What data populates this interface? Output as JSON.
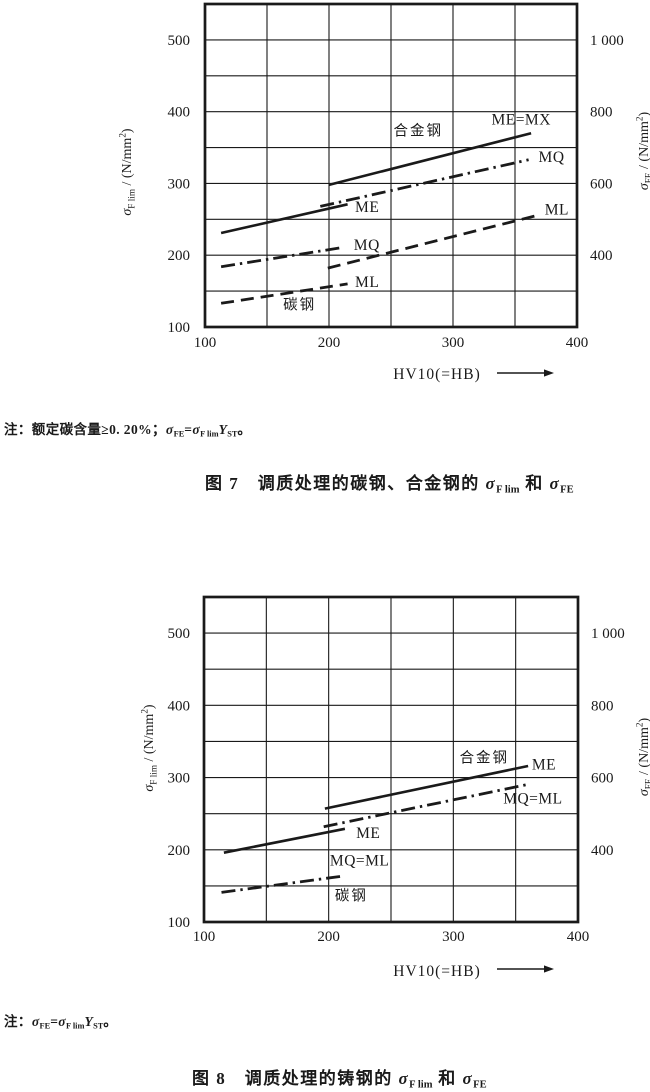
{
  "page": {
    "background": "#ffffff",
    "ink": "#1a1a1a"
  },
  "chart_data": [
    {
      "id": "figure-7",
      "type": "line",
      "caption": "图 7 调质处理的碳钢、合金钢的 σF lim 和 σFE",
      "note": "注：额定碳含量≥0. 20%；σFE=σF limYST。",
      "xlabel": "HV10(=HB)",
      "ylabel_left": "σF lim / (N/mm²)",
      "ylabel_right": "σFE / (N/mm²)",
      "xlim": [
        100,
        400
      ],
      "ylim": [
        100,
        550
      ],
      "grid": true,
      "grid_step": 50,
      "legend_position": "inline-labels",
      "x_ticks": [
        "100",
        "200",
        "300",
        "400"
      ],
      "y_ticks": [
        {
          "at": 100,
          "label": "100"
        },
        {
          "at": 200,
          "label": "200"
        },
        {
          "at": 300,
          "label": "300"
        },
        {
          "at": 400,
          "label": "400"
        },
        {
          "at": 500,
          "label": "500"
        }
      ],
      "y2_ticks": [
        {
          "at": 200,
          "label": "400"
        },
        {
          "at": 300,
          "label": "600"
        },
        {
          "at": 400,
          "label": "800"
        },
        {
          "at": 500,
          "label": "1 000"
        }
      ],
      "series": [
        {
          "group": "碳钢",
          "grade": "ME",
          "style": "solid",
          "points": [
            [
              113,
              231
            ],
            [
              215,
              271
            ]
          ]
        },
        {
          "group": "碳钢",
          "grade": "MQ",
          "style": "dashdot",
          "points": [
            [
              113,
              184
            ],
            [
              212,
              211
            ]
          ]
        },
        {
          "group": "碳钢",
          "grade": "ML",
          "style": "dash",
          "points": [
            [
              113,
              133
            ],
            [
              215,
              160
            ]
          ]
        },
        {
          "group": "合金钢",
          "grade": "ME=MX",
          "style": "solid",
          "points": [
            [
              200,
              298
            ],
            [
              363,
              370
            ]
          ]
        },
        {
          "group": "合金钢",
          "grade": "MQ",
          "style": "dashdot",
          "points": [
            [
              193,
              268
            ],
            [
              361,
              333
            ]
          ]
        },
        {
          "group": "合金钢",
          "grade": "ML",
          "style": "dash",
          "points": [
            [
              199,
              182
            ],
            [
              367,
              255
            ]
          ]
        }
      ],
      "labels": [
        {
          "text": "ME",
          "x": 221,
          "y": 267
        },
        {
          "text": "MQ",
          "x": 220,
          "y": 214
        },
        {
          "text": "ML",
          "x": 221,
          "y": 163
        },
        {
          "text": "碳钢",
          "x": 163,
          "y": 131,
          "cjk": true
        },
        {
          "text": "合金钢",
          "x": 252,
          "y": 374,
          "cjk": true
        },
        {
          "text": "ME=MX",
          "x": 331,
          "y": 389
        },
        {
          "text": "MQ",
          "x": 369,
          "y": 337
        },
        {
          "text": "ML",
          "x": 374,
          "y": 264
        }
      ],
      "note_rich": [
        {
          "t": "注：额定碳含量≥0. 20%；"
        },
        {
          "t": "σ",
          "i": 1
        },
        {
          "t": "FE",
          "s": -1
        },
        {
          "t": "="
        },
        {
          "t": "σ",
          "i": 1
        },
        {
          "t": "F lim",
          "s": -1
        },
        {
          "t": "Y",
          "i": 1
        },
        {
          "t": "ST",
          "s": -1
        },
        {
          "t": "。"
        }
      ],
      "caption_rich": [
        {
          "t": "图 7　调质处理的碳钢、合金钢的 "
        },
        {
          "t": "σ",
          "i": 1
        },
        {
          "t": "F lim",
          "s": -1
        },
        {
          "t": " 和 "
        },
        {
          "t": "σ",
          "i": 1
        },
        {
          "t": "FE",
          "s": -1
        }
      ],
      "ylabel_left_rich": [
        {
          "t": "σ",
          "i": 1
        },
        {
          "t": "F lim",
          "s": -1
        },
        {
          "t": " / (N/mm"
        },
        {
          "t": "2",
          "s": 1
        },
        {
          "t": ")"
        }
      ],
      "ylabel_right_rich": [
        {
          "t": "σ",
          "i": 1
        },
        {
          "t": "FE",
          "s": -1
        },
        {
          "t": " / (N/mm"
        },
        {
          "t": "2",
          "s": 1
        },
        {
          "t": ")"
        }
      ]
    },
    {
      "id": "figure-8",
      "type": "line",
      "caption": "图 8 调质处理的铸钢的 σF lim 和 σFE",
      "note": "注：σFE=σF limYST。",
      "xlabel": "HV10(=HB)",
      "ylabel_left": "σF lim / (N/mm²)",
      "ylabel_right": "σFE / (N/mm²)",
      "xlim": [
        100,
        400
      ],
      "ylim": [
        100,
        550
      ],
      "grid": true,
      "grid_step": 50,
      "legend_position": "inline-labels",
      "x_ticks": [
        "100",
        "200",
        "300",
        "400"
      ],
      "y_ticks": [
        {
          "at": 100,
          "label": "100"
        },
        {
          "at": 200,
          "label": "200"
        },
        {
          "at": 300,
          "label": "300"
        },
        {
          "at": 400,
          "label": "400"
        },
        {
          "at": 500,
          "label": "500"
        }
      ],
      "y2_ticks": [
        {
          "at": 200,
          "label": "400"
        },
        {
          "at": 300,
          "label": "600"
        },
        {
          "at": 400,
          "label": "800"
        },
        {
          "at": 500,
          "label": "1 000"
        }
      ],
      "series": [
        {
          "group": "碳钢",
          "grade": "ME",
          "style": "solid",
          "points": [
            [
              116,
              196
            ],
            [
              213,
              229
            ]
          ]
        },
        {
          "group": "碳钢",
          "grade": "MQ=ML",
          "style": "dashdot",
          "points": [
            [
              114,
              141
            ],
            [
              213,
              164
            ]
          ]
        },
        {
          "group": "合金钢",
          "grade": "ME",
          "style": "solid",
          "points": [
            [
              197,
              257
            ],
            [
              360,
              316
            ]
          ]
        },
        {
          "group": "合金钢",
          "grade": "MQ=ML",
          "style": "dashdot",
          "points": [
            [
              196,
              232
            ],
            [
              361,
              291
            ]
          ]
        }
      ],
      "labels": [
        {
          "text": "ME",
          "x": 222,
          "y": 223
        },
        {
          "text": "MQ=ML",
          "x": 201,
          "y": 185
        },
        {
          "text": "碳钢",
          "x": 205,
          "y": 137,
          "cjk": true
        },
        {
          "text": "合金钢",
          "x": 305,
          "y": 328,
          "cjk": true
        },
        {
          "text": "ME",
          "x": 363,
          "y": 318
        },
        {
          "text": "MQ=ML",
          "x": 340,
          "y": 271
        }
      ],
      "note_rich": [
        {
          "t": "注："
        },
        {
          "t": "σ",
          "i": 1
        },
        {
          "t": "FE",
          "s": -1
        },
        {
          "t": "="
        },
        {
          "t": "σ",
          "i": 1
        },
        {
          "t": "F lim",
          "s": -1
        },
        {
          "t": "Y",
          "i": 1
        },
        {
          "t": "ST",
          "s": -1
        },
        {
          "t": "。"
        }
      ],
      "caption_rich": [
        {
          "t": "图 8　调质处理的铸钢的 "
        },
        {
          "t": "σ",
          "i": 1
        },
        {
          "t": "F lim",
          "s": -1
        },
        {
          "t": " 和 "
        },
        {
          "t": "σ",
          "i": 1
        },
        {
          "t": "FE",
          "s": -1
        }
      ],
      "ylabel_left_rich": [
        {
          "t": "σ",
          "i": 1
        },
        {
          "t": "F lim",
          "s": -1
        },
        {
          "t": " / (N/mm"
        },
        {
          "t": "2",
          "s": 1
        },
        {
          "t": ")"
        }
      ],
      "ylabel_right_rich": [
        {
          "t": "σ",
          "i": 1
        },
        {
          "t": "FE",
          "s": -1
        },
        {
          "t": " / (N/mm"
        },
        {
          "t": "2",
          "s": 1
        },
        {
          "t": ")"
        }
      ]
    }
  ]
}
